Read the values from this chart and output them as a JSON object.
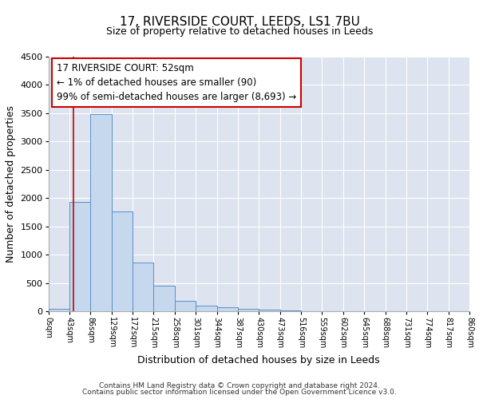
{
  "title": "17, RIVERSIDE COURT, LEEDS, LS1 7BU",
  "subtitle": "Size of property relative to detached houses in Leeds",
  "xlabel": "Distribution of detached houses by size in Leeds",
  "ylabel": "Number of detached properties",
  "bin_labels": [
    "0sqm",
    "43sqm",
    "86sqm",
    "129sqm",
    "172sqm",
    "215sqm",
    "258sqm",
    "301sqm",
    "344sqm",
    "387sqm",
    "430sqm",
    "473sqm",
    "516sqm",
    "559sqm",
    "602sqm",
    "645sqm",
    "688sqm",
    "731sqm",
    "774sqm",
    "817sqm",
    "860sqm"
  ],
  "bar_values": [
    50,
    1930,
    3490,
    1760,
    860,
    460,
    185,
    105,
    70,
    50,
    30,
    20,
    5,
    0,
    0,
    0,
    0,
    0,
    0,
    0
  ],
  "bar_color": "#c5d8ee",
  "bar_edge_color": "#5b8fc9",
  "vline_x": 52,
  "vline_color": "#cc0000",
  "annotation_line1": "17 RIVERSIDE COURT: 52sqm",
  "annotation_line2": "← 1% of detached houses are smaller (90)",
  "annotation_line3": "99% of semi-detached houses are larger (8,693) →",
  "annotation_box_color": "#cc0000",
  "ylim": [
    0,
    4500
  ],
  "yticks": [
    0,
    500,
    1000,
    1500,
    2000,
    2500,
    3000,
    3500,
    4000,
    4500
  ],
  "bg_color": "#dde4ef",
  "grid_color": "#ffffff",
  "footer_line1": "Contains HM Land Registry data © Crown copyright and database right 2024.",
  "footer_line2": "Contains public sector information licensed under the Open Government Licence v3.0."
}
